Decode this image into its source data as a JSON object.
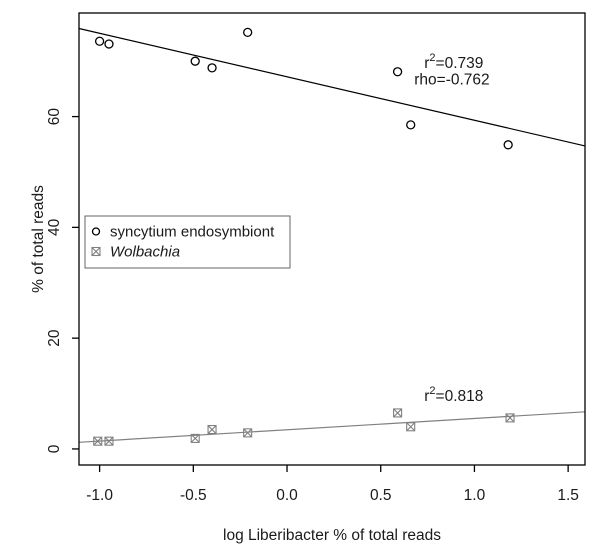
{
  "figure": {
    "background": "#ffffff"
  },
  "chart_data": {
    "type": "scatter",
    "title": "",
    "xlabel": "log Liberibacter % of total reads",
    "ylabel": "% of total reads",
    "xlim": [
      -1.11,
      1.59
    ],
    "ylim": [
      -2.9,
      78.7
    ],
    "grid": false,
    "x_ticks": [
      {
        "value": -1.0,
        "label": "-1.0"
      },
      {
        "value": -0.5,
        "label": "-0.5"
      },
      {
        "value": 0.0,
        "label": "0.0"
      },
      {
        "value": 0.5,
        "label": "0.5"
      },
      {
        "value": 1.0,
        "label": "1.0"
      },
      {
        "value": 1.5,
        "label": "1.5"
      }
    ],
    "y_ticks": [
      {
        "value": 0,
        "label": "0"
      },
      {
        "value": 20,
        "label": "20"
      },
      {
        "value": 40,
        "label": "40"
      },
      {
        "value": 60,
        "label": "60"
      }
    ],
    "colors": {
      "black_series": "#000000",
      "gray_series": "#808080",
      "gray_text": "#8c8c8c",
      "legend_border": "#666666"
    },
    "series": [
      {
        "name": "syncytium endosymbiont",
        "marker": "circle",
        "color": "#000000",
        "italic": false,
        "points": [
          [
            -1.0,
            73.6
          ],
          [
            -0.95,
            73.1
          ],
          [
            -0.49,
            70.0
          ],
          [
            -0.4,
            68.8
          ],
          [
            -0.21,
            75.2
          ],
          [
            0.59,
            68.1
          ],
          [
            0.66,
            58.5
          ],
          [
            1.18,
            54.9
          ]
        ]
      },
      {
        "name": "Wolbachia",
        "marker": "square-cross",
        "color": "#808080",
        "italic": true,
        "points": [
          [
            -1.01,
            1.4
          ],
          [
            -0.95,
            1.4
          ],
          [
            -0.49,
            1.9
          ],
          [
            -0.4,
            3.5
          ],
          [
            -0.21,
            2.9
          ],
          [
            0.59,
            6.5
          ],
          [
            0.66,
            4.0
          ],
          [
            1.19,
            5.6
          ]
        ]
      }
    ],
    "trend_lines": [
      {
        "series": "syncytium endosymbiont",
        "color": "#000000",
        "x1": -1.11,
        "y1": 75.9,
        "x2": 1.59,
        "y2": 54.7
      },
      {
        "series": "Wolbachia",
        "color": "#808080",
        "x1": -1.11,
        "y1": 1.2,
        "x2": 1.59,
        "y2": 6.7
      }
    ],
    "annotations": [
      {
        "id": "black-r2",
        "color": "#1a1a1a",
        "x": 0.89,
        "y": 69.7,
        "pre": "r",
        "sup": "2",
        "post": "=0.739"
      },
      {
        "id": "black-rho",
        "color": "#1a1a1a",
        "x": 0.88,
        "y": 66.7,
        "pre": "rho=-0.762",
        "sup": "",
        "post": ""
      },
      {
        "id": "gray-r2",
        "color": "#8c8c8c",
        "x": 0.89,
        "y": 9.6,
        "pre": "r",
        "sup": "2",
        "post": "=0.818"
      }
    ],
    "legend": {
      "position": "middle-left",
      "items": [
        {
          "label": "syncytium endosymbiont",
          "marker": "circle",
          "color": "#000000",
          "italic": false
        },
        {
          "label": "Wolbachia",
          "marker": "square-cross",
          "color": "#808080",
          "italic": true
        }
      ]
    }
  }
}
